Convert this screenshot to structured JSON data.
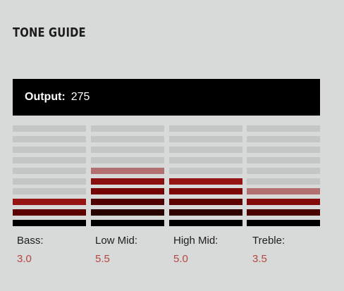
{
  "header": {
    "title": "TONE GUIDE"
  },
  "output": {
    "label": "Output:",
    "value": "275"
  },
  "bands": [
    {
      "label": "Bass:",
      "value": "3.0",
      "level": 3.0
    },
    {
      "label": "Low Mid:",
      "value": "5.5",
      "level": 5.5
    },
    {
      "label": "High Mid:",
      "value": "5.0",
      "level": 5.0
    },
    {
      "label": "Treble:",
      "value": "3.5",
      "level": 3.5
    }
  ],
  "meter": {
    "segments": 10,
    "max": 10
  },
  "colors": {
    "background": "#d7dad9",
    "output_bar": "#000000",
    "segment_off": "#c4c6c6",
    "value_text": "#b8443f"
  }
}
